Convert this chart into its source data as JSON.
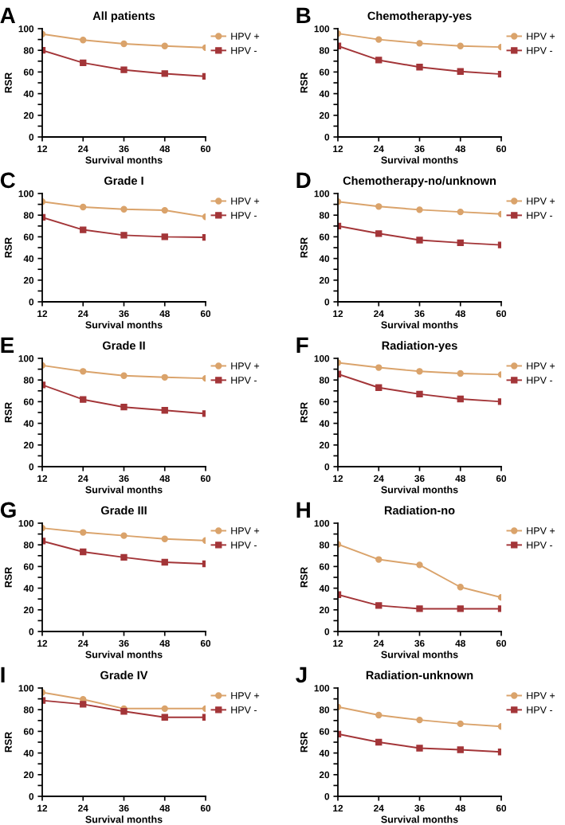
{
  "chart_data": [
    {
      "type": "line",
      "title": "All patients",
      "annotations": [
        "A"
      ],
      "xlabel": "Survival months",
      "ylabel": "RSR",
      "x": [
        12,
        24,
        36,
        48,
        60
      ],
      "xlim": [
        12,
        60
      ],
      "xticks": [
        12,
        24,
        36,
        48,
        60
      ],
      "ylim": [
        0,
        100
      ],
      "yticks": [
        0,
        {
          "value": 10,
          "label": null
        },
        20,
        {
          "value": 30,
          "label": null
        },
        40,
        {
          "value": 50,
          "label": null
        },
        60,
        {
          "value": 70,
          "label": null
        },
        80,
        {
          "value": 90,
          "label": null
        },
        100
      ],
      "grid": false,
      "legend": "right",
      "series": [
        {
          "name": "HPV +",
          "color": "#daa36b",
          "marker": "circle",
          "values": [
            95,
            89.5,
            86,
            84,
            82.5
          ]
        },
        {
          "name": "HPV -",
          "color": "#a33538",
          "marker": "square",
          "values": [
            80,
            68.5,
            62,
            58.5,
            56
          ]
        }
      ]
    },
    {
      "type": "line",
      "title": "Chemotherapy-yes",
      "annotations": [
        "B"
      ],
      "xlabel": "Survival months",
      "ylabel": "RSR",
      "x": [
        12,
        24,
        36,
        48,
        60
      ],
      "xlim": [
        12,
        60
      ],
      "xticks": [
        12,
        24,
        36,
        48,
        60
      ],
      "ylim": [
        0,
        100
      ],
      "yticks": [
        0,
        {
          "value": 10,
          "label": null
        },
        20,
        {
          "value": 30,
          "label": null
        },
        40,
        {
          "value": 50,
          "label": null
        },
        60,
        {
          "value": 70,
          "label": null
        },
        80,
        {
          "value": 90,
          "label": null
        },
        100
      ],
      "grid": false,
      "legend": "right",
      "series": [
        {
          "name": "HPV +",
          "color": "#daa36b",
          "marker": "circle",
          "values": [
            95.5,
            90,
            86.5,
            84,
            83
          ]
        },
        {
          "name": "HPV -",
          "color": "#a33538",
          "marker": "square",
          "values": [
            84,
            71,
            64.5,
            60.5,
            58
          ]
        }
      ]
    },
    {
      "type": "line",
      "title": "Grade I",
      "annotations": [
        "C"
      ],
      "xlabel": "Survival months",
      "ylabel": "RSR",
      "x": [
        12,
        24,
        36,
        48,
        60
      ],
      "xlim": [
        12,
        60
      ],
      "xticks": [
        12,
        24,
        36,
        48,
        60
      ],
      "ylim": [
        0,
        100
      ],
      "yticks": [
        0,
        {
          "value": 10,
          "label": null
        },
        20,
        {
          "value": 30,
          "label": null
        },
        40,
        {
          "value": 50,
          "label": null
        },
        60,
        {
          "value": 70,
          "label": null
        },
        80,
        {
          "value": 90,
          "label": null
        },
        100
      ],
      "grid": false,
      "legend": "right",
      "series": [
        {
          "name": "HPV +",
          "color": "#daa36b",
          "marker": "circle",
          "values": [
            92.5,
            87.5,
            85.5,
            84.5,
            78.5
          ]
        },
        {
          "name": "HPV -",
          "color": "#a33538",
          "marker": "square",
          "values": [
            78,
            66.5,
            61.5,
            60,
            59.5
          ]
        }
      ]
    },
    {
      "type": "line",
      "title": "Chemotherapy-no/unknown",
      "annotations": [
        "D"
      ],
      "xlabel": "Survival months",
      "ylabel": "RSR",
      "x": [
        12,
        24,
        36,
        48,
        60
      ],
      "xlim": [
        12,
        60
      ],
      "xticks": [
        12,
        24,
        36,
        48,
        60
      ],
      "ylim": [
        0,
        100
      ],
      "yticks": [
        0,
        {
          "value": 10,
          "label": null
        },
        20,
        {
          "value": 30,
          "label": null
        },
        40,
        {
          "value": 50,
          "label": null
        },
        60,
        {
          "value": 70,
          "label": null
        },
        80,
        {
          "value": 90,
          "label": null
        },
        100
      ],
      "grid": false,
      "legend": "right",
      "series": [
        {
          "name": "HPV +",
          "color": "#daa36b",
          "marker": "circle",
          "values": [
            92.5,
            88,
            85,
            83,
            81
          ]
        },
        {
          "name": "HPV -",
          "color": "#a33538",
          "marker": "square",
          "values": [
            70,
            63,
            57,
            54.5,
            52.5
          ]
        }
      ]
    },
    {
      "type": "line",
      "title": "Grade II",
      "annotations": [
        "E"
      ],
      "xlabel": "Survival months",
      "ylabel": "RSR",
      "x": [
        12,
        24,
        36,
        48,
        60
      ],
      "xlim": [
        12,
        60
      ],
      "xticks": [
        12,
        24,
        36,
        48,
        60
      ],
      "ylim": [
        0,
        100
      ],
      "yticks": [
        0,
        {
          "value": 10,
          "label": null
        },
        20,
        {
          "value": 30,
          "label": null
        },
        40,
        {
          "value": 50,
          "label": null
        },
        60,
        {
          "value": 70,
          "label": null
        },
        80,
        {
          "value": 90,
          "label": null
        },
        100
      ],
      "grid": false,
      "legend": "right",
      "series": [
        {
          "name": "HPV +",
          "color": "#daa36b",
          "marker": "circle",
          "values": [
            93.5,
            88,
            84,
            82.5,
            81.5
          ]
        },
        {
          "name": "HPV -",
          "color": "#a33538",
          "marker": "square",
          "values": [
            75.5,
            62,
            55,
            52,
            49
          ]
        }
      ]
    },
    {
      "type": "line",
      "title": "Radiation-yes",
      "annotations": [
        "F"
      ],
      "xlabel": "Survival months",
      "ylabel": "RSR",
      "x": [
        12,
        24,
        36,
        48,
        60
      ],
      "xlim": [
        12,
        60
      ],
      "xticks": [
        12,
        24,
        36,
        48,
        60
      ],
      "ylim": [
        0,
        100
      ],
      "yticks": [
        0,
        {
          "value": 10,
          "label": null
        },
        20,
        {
          "value": 30,
          "label": null
        },
        40,
        {
          "value": 50,
          "label": null
        },
        60,
        {
          "value": 70,
          "label": null
        },
        80,
        {
          "value": 90,
          "label": null
        },
        100
      ],
      "grid": false,
      "legend": "right",
      "series": [
        {
          "name": "HPV +",
          "color": "#daa36b",
          "marker": "circle",
          "values": [
            96,
            91.5,
            88,
            86,
            85
          ]
        },
        {
          "name": "HPV -",
          "color": "#a33538",
          "marker": "square",
          "values": [
            85.5,
            73,
            67,
            62.5,
            60
          ]
        }
      ]
    },
    {
      "type": "line",
      "title": "Grade III",
      "annotations": [
        "G"
      ],
      "xlabel": "Survival months",
      "ylabel": "RSR",
      "x": [
        12,
        24,
        36,
        48,
        60
      ],
      "xlim": [
        12,
        60
      ],
      "xticks": [
        12,
        24,
        36,
        48,
        60
      ],
      "ylim": [
        0,
        100
      ],
      "yticks": [
        0,
        {
          "value": 10,
          "label": null
        },
        20,
        {
          "value": 30,
          "label": null
        },
        40,
        {
          "value": 50,
          "label": null
        },
        60,
        {
          "value": 70,
          "label": null
        },
        80,
        {
          "value": 90,
          "label": null
        },
        100
      ],
      "grid": false,
      "legend": "right",
      "series": [
        {
          "name": "HPV +",
          "color": "#daa36b",
          "marker": "circle",
          "values": [
            95.5,
            91.5,
            88.5,
            85.5,
            84
          ]
        },
        {
          "name": "HPV -",
          "color": "#a33538",
          "marker": "square",
          "values": [
            83.5,
            73.5,
            68.5,
            64,
            62.5
          ]
        }
      ]
    },
    {
      "type": "line",
      "title": "Radiation-no",
      "annotations": [
        "H"
      ],
      "xlabel": "Survival months",
      "ylabel": "RSR",
      "x": [
        12,
        24,
        36,
        48,
        60
      ],
      "xlim": [
        12,
        60
      ],
      "xticks": [
        12,
        24,
        36,
        48,
        60
      ],
      "ylim": [
        0,
        100
      ],
      "yticks": [
        0,
        {
          "value": 10,
          "label": null
        },
        20,
        {
          "value": 30,
          "label": null
        },
        40,
        {
          "value": 50,
          "label": null
        },
        60,
        {
          "value": 70,
          "label": null
        },
        80,
        {
          "value": 90,
          "label": null
        },
        100
      ],
      "grid": false,
      "legend": "right",
      "series": [
        {
          "name": "HPV +",
          "color": "#daa36b",
          "marker": "circle",
          "values": [
            80.5,
            66.5,
            61.5,
            41,
            31.5
          ]
        },
        {
          "name": "HPV -",
          "color": "#a33538",
          "marker": "square",
          "values": [
            34,
            24,
            21,
            21,
            21
          ]
        }
      ]
    },
    {
      "type": "line",
      "title": "Grade IV",
      "annotations": [
        "I"
      ],
      "xlabel": "Survival months",
      "ylabel": "RSR",
      "x": [
        12,
        24,
        36,
        48,
        60
      ],
      "xlim": [
        12,
        60
      ],
      "xticks": [
        12,
        24,
        36,
        48,
        60
      ],
      "ylim": [
        0,
        100
      ],
      "yticks": [
        0,
        {
          "value": 10,
          "label": null
        },
        20,
        {
          "value": 30,
          "label": null
        },
        40,
        {
          "value": 50,
          "label": null
        },
        60,
        {
          "value": 70,
          "label": null
        },
        80,
        {
          "value": 90,
          "label": null
        },
        100
      ],
      "grid": false,
      "legend": "right",
      "series": [
        {
          "name": "HPV +",
          "color": "#daa36b",
          "marker": "circle",
          "values": [
            96,
            89.5,
            81,
            81,
            81
          ]
        },
        {
          "name": "HPV -",
          "color": "#a33538",
          "marker": "square",
          "values": [
            88.5,
            85,
            78.5,
            73,
            73
          ]
        }
      ]
    },
    {
      "type": "line",
      "title": "Radiation-unknown",
      "annotations": [
        "J"
      ],
      "xlabel": "Survival months",
      "ylabel": "RSR",
      "x": [
        12,
        24,
        36,
        48,
        60
      ],
      "xlim": [
        12,
        60
      ],
      "xticks": [
        12,
        24,
        36,
        48,
        60
      ],
      "ylim": [
        0,
        100
      ],
      "yticks": [
        0,
        {
          "value": 10,
          "label": null
        },
        20,
        {
          "value": 30,
          "label": null
        },
        40,
        {
          "value": 50,
          "label": null
        },
        60,
        {
          "value": 70,
          "label": null
        },
        80,
        {
          "value": 90,
          "label": null
        },
        100
      ],
      "grid": false,
      "legend": "right",
      "series": [
        {
          "name": "HPV +",
          "color": "#daa36b",
          "marker": "circle",
          "values": [
            82.5,
            75,
            70.5,
            67,
            64.5
          ]
        },
        {
          "name": "HPV -",
          "color": "#a33538",
          "marker": "square",
          "values": [
            57.5,
            50,
            44.5,
            43,
            41
          ]
        }
      ]
    }
  ]
}
